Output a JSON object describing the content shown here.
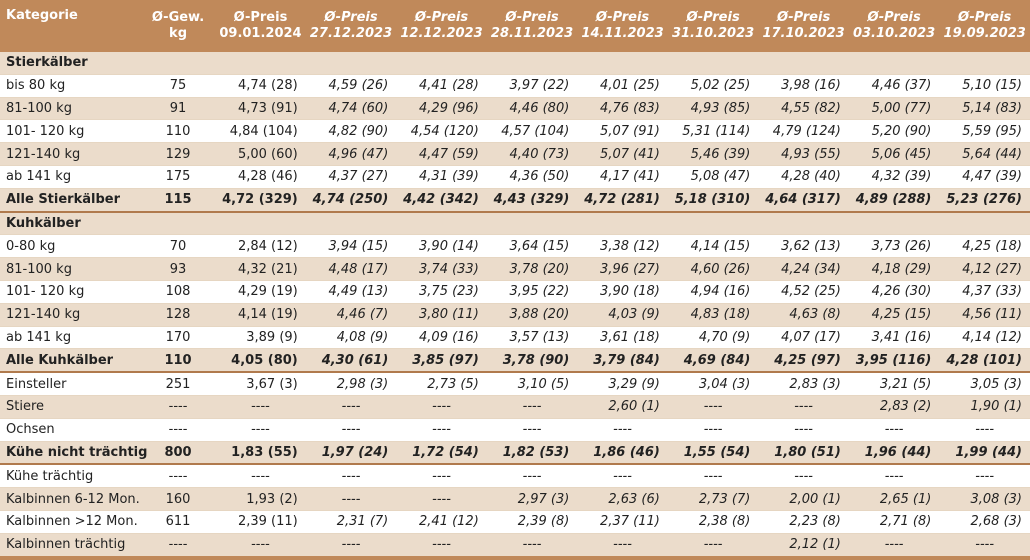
{
  "headers": [
    {
      "line1": "Kategorie",
      "line2": ""
    },
    {
      "line1": "Ø-Gew.",
      "line2": "kg"
    },
    {
      "line1": "Ø-Preis",
      "line2": "09.01.2024"
    },
    {
      "line1": "Ø-Preis",
      "line2": "27.12.2023"
    },
    {
      "line1": "Ø-Preis",
      "line2": "12.12.2023"
    },
    {
      "line1": "Ø-Preis",
      "line2": "28.11.2023"
    },
    {
      "line1": "Ø-Preis",
      "line2": "14.11.2023"
    },
    {
      "line1": "Ø-Preis",
      "line2": "31.10.2023"
    },
    {
      "line1": "Ø-Preis",
      "line2": "17.10.2023"
    },
    {
      "line1": "Ø-Preis",
      "line2": "03.10.2023"
    },
    {
      "line1": "Ø-Preis",
      "line2": "19.09.2023"
    }
  ],
  "rows": [
    {
      "kind": "section",
      "label": "Stierkälber",
      "cells": []
    },
    {
      "kind": "data",
      "label": "bis 80 kg",
      "cells": [
        "75",
        "4,74 (28)",
        "4,59 (26)",
        "4,41 (28)",
        "3,97 (22)",
        "4,01 (25)",
        "5,02 (25)",
        "3,98 (16)",
        "4,46 (37)",
        "5,10 (15)"
      ]
    },
    {
      "kind": "data",
      "label": "81-100 kg",
      "cells": [
        "91",
        "4,73 (91)",
        "4,74 (60)",
        "4,29 (96)",
        "4,46 (80)",
        "4,76 (83)",
        "4,93 (85)",
        "4,55 (82)",
        "5,00 (77)",
        "5,14 (83)"
      ]
    },
    {
      "kind": "data",
      "label": "101- 120 kg",
      "cells": [
        "110",
        "4,84 (104)",
        "4,82 (90)",
        "4,54 (120)",
        "4,57 (104)",
        "5,07 (91)",
        "5,31 (114)",
        "4,79 (124)",
        "5,20 (90)",
        "5,59 (95)"
      ]
    },
    {
      "kind": "data",
      "label": "121-140 kg",
      "cells": [
        "129",
        "5,00 (60)",
        "4,96 (47)",
        "4,47 (59)",
        "4,40 (73)",
        "5,07 (41)",
        "5,46 (39)",
        "4,93 (55)",
        "5,06 (45)",
        "5,64 (44)"
      ]
    },
    {
      "kind": "data",
      "label": "ab 141 kg",
      "cells": [
        "175",
        "4,28 (46)",
        "4,37 (27)",
        "4,31 (39)",
        "4,36 (50)",
        "4,17 (41)",
        "5,08 (47)",
        "4,28 (40)",
        "4,32 (39)",
        "4,47 (39)"
      ]
    },
    {
      "kind": "total",
      "label": "Alle Stierkälber",
      "cells": [
        "115",
        "4,72 (329)",
        "4,74 (250)",
        "4,42 (342)",
        "4,43 (329)",
        "4,72 (281)",
        "5,18 (310)",
        "4,64 (317)",
        "4,89 (288)",
        "5,23 (276)"
      ]
    },
    {
      "kind": "section",
      "label": "Kuhkälber",
      "cells": []
    },
    {
      "kind": "data",
      "label": "0-80 kg",
      "cells": [
        "70",
        "2,84 (12)",
        "3,94 (15)",
        "3,90 (14)",
        "3,64 (15)",
        "3,38 (12)",
        "4,14 (15)",
        "3,62 (13)",
        "3,73 (26)",
        "4,25 (18)"
      ]
    },
    {
      "kind": "data",
      "label": "81-100 kg",
      "cells": [
        "93",
        "4,32 (21)",
        "4,48 (17)",
        "3,74 (33)",
        "3,78 (20)",
        "3,96 (27)",
        "4,60 (26)",
        "4,24 (34)",
        "4,18 (29)",
        "4,12 (27)"
      ]
    },
    {
      "kind": "data",
      "label": "101- 120 kg",
      "cells": [
        "108",
        "4,29 (19)",
        "4,49 (13)",
        "3,75 (23)",
        "3,95 (22)",
        "3,90 (18)",
        "4,94 (16)",
        "4,52 (25)",
        "4,26 (30)",
        "4,37 (33)"
      ]
    },
    {
      "kind": "data",
      "label": "121-140 kg",
      "cells": [
        "128",
        "4,14 (19)",
        "4,46 (7)",
        "3,80 (11)",
        "3,88 (20)",
        "4,03 (9)",
        "4,83 (18)",
        "4,63 (8)",
        "4,25 (15)",
        "4,56 (11)"
      ]
    },
    {
      "kind": "data",
      "label": "ab 141 kg",
      "cells": [
        "170",
        "3,89 (9)",
        "4,08 (9)",
        "4,09 (16)",
        "3,57 (13)",
        "3,61 (18)",
        "4,70 (9)",
        "4,07 (17)",
        "3,41 (16)",
        "4,14 (12)"
      ]
    },
    {
      "kind": "total",
      "label": "Alle Kuhkälber",
      "cells": [
        "110",
        "4,05 (80)",
        "4,30 (61)",
        "3,85 (97)",
        "3,78 (90)",
        "3,79 (84)",
        "4,69 (84)",
        "4,25 (97)",
        "3,95 (116)",
        "4,28 (101)"
      ]
    },
    {
      "kind": "data",
      "label": "Einsteller",
      "cells": [
        "251",
        "3,67 (3)",
        "2,98 (3)",
        "2,73 (5)",
        "3,10 (5)",
        "3,29 (9)",
        "3,04 (3)",
        "2,83 (3)",
        "3,21 (5)",
        "3,05 (3)"
      ]
    },
    {
      "kind": "data",
      "label": "Stiere",
      "cells": [
        "----",
        "----",
        "----",
        "----",
        "----",
        "2,60 (1)",
        "----",
        "----",
        "2,83 (2)",
        "1,90 (1)"
      ]
    },
    {
      "kind": "data",
      "label": "Ochsen",
      "cells": [
        "----",
        "----",
        "----",
        "----",
        "----",
        "----",
        "----",
        "----",
        "----",
        "----"
      ]
    },
    {
      "kind": "boldrow",
      "label": "Kühe nicht trächtig",
      "cells": [
        "800",
        "1,83 (55)",
        "1,97 (24)",
        "1,72 (54)",
        "1,82 (53)",
        "1,86 (46)",
        "1,55 (54)",
        "1,80 (51)",
        "1,96 (44)",
        "1,99 (44)"
      ]
    },
    {
      "kind": "data",
      "label": "Kühe trächtig",
      "cells": [
        "----",
        "----",
        "----",
        "----",
        "----",
        "----",
        "----",
        "----",
        "----",
        "----"
      ]
    },
    {
      "kind": "data",
      "label": "Kalbinnen 6-12 Mon.",
      "cells": [
        "160",
        "1,93 (2)",
        "----",
        "----",
        "2,97 (3)",
        "2,63 (6)",
        "2,73 (7)",
        "2,00 (1)",
        "2,65 (1)",
        "3,08 (3)"
      ]
    },
    {
      "kind": "data",
      "label": "Kalbinnen >12 Mon.",
      "cells": [
        "611",
        "2,39 (11)",
        "2,31 (7)",
        "2,41 (12)",
        "2,39 (8)",
        "2,37 (11)",
        "2,38 (8)",
        "2,23 (8)",
        "2,71 (8)",
        "2,68 (3)"
      ]
    },
    {
      "kind": "data",
      "label": "Kalbinnen trächtig",
      "cells": [
        "----",
        "----",
        "----",
        "----",
        "----",
        "----",
        "----",
        "2,12 (1)",
        "----",
        "----"
      ]
    }
  ]
}
